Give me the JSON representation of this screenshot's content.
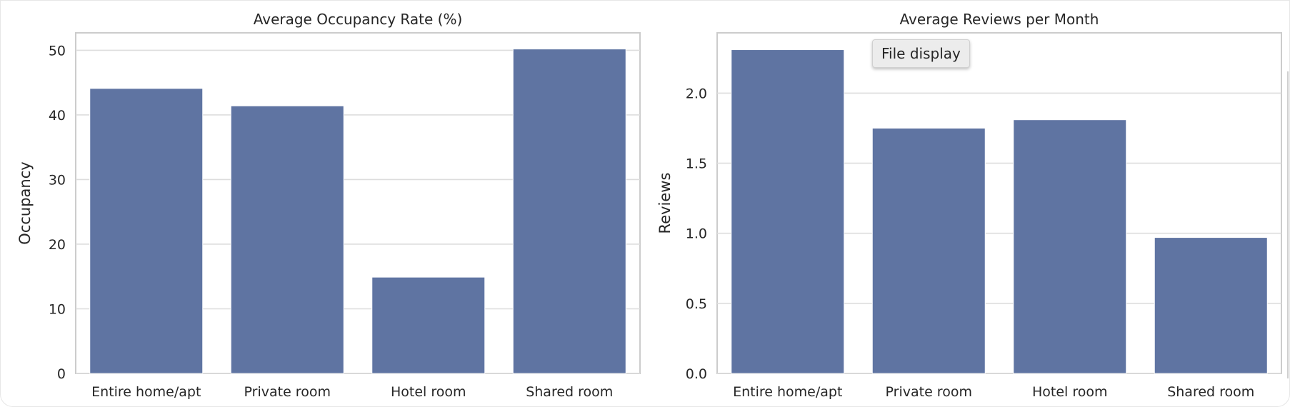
{
  "tooltip": {
    "label": "File display"
  },
  "colors": {
    "bar": "#5f74a2"
  },
  "chart_data": [
    {
      "type": "bar",
      "title": "Average Occupancy Rate (%)",
      "xlabel": "",
      "ylabel": "Occupancy",
      "categories": [
        "Entire home/apt",
        "Private room",
        "Hotel room",
        "Shared room"
      ],
      "values": [
        44.1,
        41.4,
        14.9,
        50.2
      ],
      "ylim": [
        0,
        52.7
      ],
      "yticks": [
        0,
        10,
        20,
        30,
        40,
        50
      ],
      "ytick_labels": [
        "0",
        "10",
        "20",
        "30",
        "40",
        "50"
      ],
      "grid": true
    },
    {
      "type": "bar",
      "title": "Average Reviews per Month",
      "xlabel": "",
      "ylabel": "Reviews",
      "categories": [
        "Entire home/apt",
        "Private room",
        "Hotel room",
        "Shared room"
      ],
      "values": [
        2.31,
        1.75,
        1.81,
        0.97
      ],
      "ylim": [
        0,
        2.43
      ],
      "yticks": [
        0,
        0.5,
        1.0,
        1.5,
        2.0
      ],
      "ytick_labels": [
        "0.0",
        "0.5",
        "1.0",
        "1.5",
        "2.0"
      ],
      "grid": true
    }
  ]
}
